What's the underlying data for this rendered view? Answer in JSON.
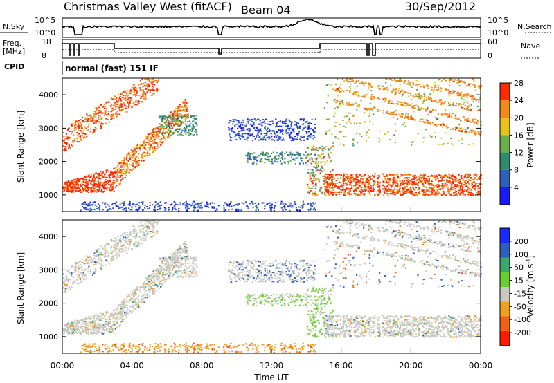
{
  "header": {
    "station": "Christmas Valley West (fitACF)",
    "beam": "Beam 04",
    "date": "30/Sep/2012"
  },
  "top_panels": {
    "nsky_label": "N.Sky",
    "nsky_ticks": [
      "10^5",
      "10^0"
    ],
    "nsearch_label": "N.Search",
    "nsearch_ticks": [
      "10^5",
      "10^0"
    ],
    "freq_label_1": "Freq.",
    "freq_label_2": "[MHz]",
    "freq_ticks": [
      "18",
      "8"
    ],
    "nave_label": "Nave",
    "nave_ticks": [
      "60",
      "0"
    ],
    "cpid_label": "CPID",
    "cpid_value": "normal (fast) 151 IF"
  },
  "chart_data": [
    {
      "type": "heatmap",
      "title": "",
      "ylabel": "Slant Range [km]",
      "xlabel": "",
      "yticks": [
        "1000",
        "2000",
        "3000",
        "4000"
      ],
      "ylim": [
        500,
        4500
      ],
      "colorbar": {
        "label": "Power [dB]",
        "ticks": [
          "4",
          "8",
          "12",
          "16",
          "20",
          "24",
          "28"
        ],
        "colors": [
          "#1a1aff",
          "#2f5fb8",
          "#2e8b6b",
          "#6ab04c",
          "#e8c21a",
          "#f08a18",
          "#ff2a00"
        ]
      },
      "description_of_features": [
        {
          "band": "near-range",
          "x": [
            "00:00",
            "03:00"
          ],
          "range_km": [
            1050,
            1800
          ],
          "value_db": 28
        },
        {
          "band": "far-range diagonal",
          "x": [
            "00:00",
            "07:00"
          ],
          "range_km": [
            2300,
            4500
          ],
          "value_db": 26
        },
        {
          "band": "noise",
          "x": [
            "09:30",
            "14:00"
          ],
          "range_km": [
            2700,
            3300
          ],
          "value_db": 6
        },
        {
          "band": "near-range evening",
          "x": [
            "15:00",
            "24:00"
          ],
          "range_km": [
            1000,
            1500
          ],
          "value_db": 26
        }
      ]
    },
    {
      "type": "heatmap",
      "title": "",
      "ylabel": "Slant Range [km]",
      "xlabel": "Time UT",
      "xticks": [
        "00:00",
        "04:00",
        "08:00",
        "12:00",
        "16:00",
        "20:00",
        "00:00"
      ],
      "yticks": [
        "1000",
        "2000",
        "3000",
        "4000"
      ],
      "ylim": [
        500,
        4500
      ],
      "colorbar": {
        "label": "Velocity [m s^-1]",
        "ticks": [
          "200",
          "100",
          "50",
          "15",
          "-15",
          "-50",
          "-100",
          "-200"
        ],
        "colors": [
          "#1a2aff",
          "#2f5fb8",
          "#3aa86a",
          "#6acd30",
          "#c8c8c0",
          "#f0a020",
          "#f06010",
          "#ff1a00"
        ]
      }
    }
  ]
}
